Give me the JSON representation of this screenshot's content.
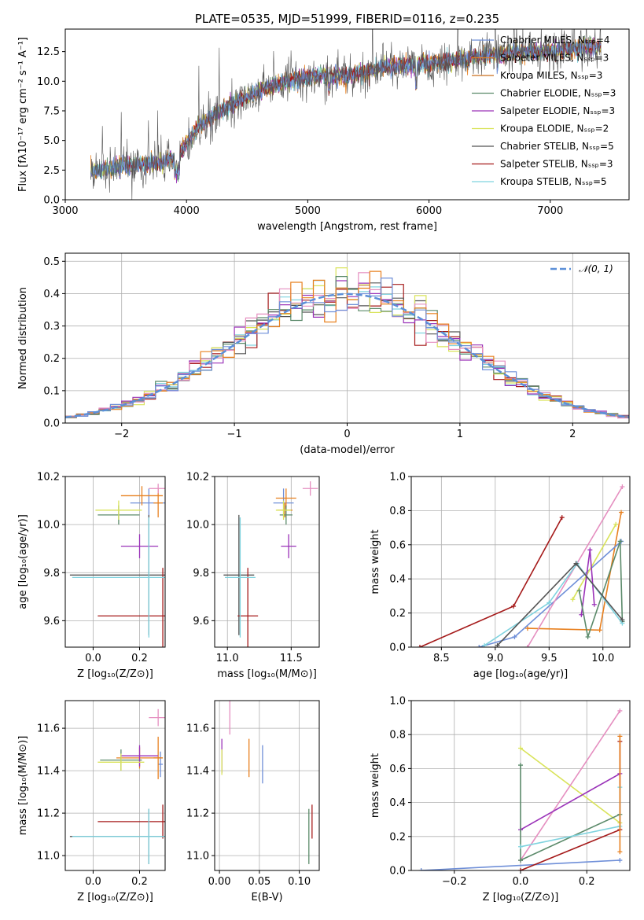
{
  "colors": [
    "#6f8fd8",
    "#e8801f",
    "#c96f1f",
    "#5b8a6a",
    "#9a32b8",
    "#d9e35a",
    "#555555",
    "#a51a1a",
    "#7fd3df"
  ],
  "chart_data": [
    {
      "id": "spectrum",
      "type": "line",
      "title": "PLATE=0535, MJD=51999, FIBERID=0116, z=0.235",
      "xlabel": "wavelength [Angstrom, rest frame]",
      "ylabel": "Flux [fλ10⁻¹⁷ erg cm⁻² s⁻¹ A⁻¹]",
      "xlim": [
        3000,
        7650
      ],
      "ylim": [
        0,
        14.4
      ],
      "xticks": [
        3000,
        4000,
        5000,
        6000,
        7000
      ],
      "yticks": [
        0.0,
        2.5,
        5.0,
        7.5,
        10.0,
        12.5
      ],
      "xtick_labels": [
        "3000",
        "4000",
        "5000",
        "6000",
        "7000"
      ],
      "ytick_labels": [
        "0.0",
        "2.5",
        "5.0",
        "7.5",
        "10.0",
        "12.5"
      ],
      "data_x": [
        3210,
        3400,
        3600,
        3800,
        3950,
        4100,
        4300,
        4500,
        4700,
        4900,
        5100,
        5300,
        5500,
        5700,
        5900,
        6100,
        6300,
        6500,
        6700,
        6900,
        7100,
        7300
      ],
      "data_y": [
        2.4,
        2.7,
        2.9,
        3.1,
        4.0,
        6.2,
        7.6,
        8.7,
        9.6,
        10.2,
        10.5,
        10.4,
        10.9,
        11.3,
        11.4,
        11.6,
        11.9,
        12.2,
        12.4,
        12.5,
        12.6,
        12.9
      ],
      "legend": [
        "Chabrier MILES, N$_{SSP}$=4",
        "Salpeter MILES, N$_{SSP}$=3",
        "Kroupa MILES, N$_{SSP}$=3",
        "Chabrier ELODIE, N$_{SSP}$=3",
        "Salpeter ELODIE, N$_{SSP}$=3",
        "Kroupa ELODIE, N$_{SSP}$=2",
        "Chabrier STELIB, N$_{SSP}$=5",
        "Salpeter STELIB, N$_{SSP}$=3",
        "Kroupa STELIB, N$_{SSP}$=5"
      ],
      "legend_text": [
        "Chabrier MILES, Nₛₛₚ=4",
        "Salpeter MILES, Nₛₛₚ=3",
        "Kroupa MILES, Nₛₛₚ=3",
        "Chabrier ELODIE, Nₛₛₚ=3",
        "Salpeter ELODIE, Nₛₛₚ=3",
        "Kroupa ELODIE, Nₛₛₚ=2",
        "Chabrier STELIB, Nₛₛₚ=5",
        "Salpeter STELIB, Nₛₛₚ=3",
        "Kroupa STELIB, Nₛₛₚ=5"
      ],
      "legend_position": "top-right",
      "grid": false
    },
    {
      "id": "residuals",
      "type": "line",
      "xlabel": "(data-model)/error",
      "ylabel": "Normed distribution",
      "xlim": [
        -2.5,
        2.5
      ],
      "ylim": [
        0,
        0.525
      ],
      "xticks": [
        -2,
        -1,
        0,
        1,
        2
      ],
      "yticks": [
        0.0,
        0.1,
        0.2,
        0.3,
        0.4,
        0.5
      ],
      "xtick_labels": [
        "−2",
        "−1",
        "0",
        "1",
        "2"
      ],
      "ytick_labels": [
        "0.0",
        "0.1",
        "0.2",
        "0.3",
        "0.4",
        "0.5"
      ],
      "legend": [
        "$\\mathcal{N}(0,1)$"
      ],
      "legend_text": [
        "𝒩(0, 1)"
      ],
      "legend_position": "top-right",
      "grid": true
    },
    {
      "id": "age-vs-Z",
      "type": "scatter",
      "xlabel": "Z [log₁₀(Z/Z⊙)]",
      "ylabel": "age  [log₁₀(age/yr)]",
      "xlim": [
        -0.12,
        0.31
      ],
      "ylim": [
        9.49,
        10.2
      ],
      "xticks": [
        0.0,
        0.2
      ],
      "yticks": [
        9.6,
        9.8,
        10.0,
        10.2
      ],
      "xtick_labels": [
        "0.0",
        "0.2"
      ],
      "ytick_labels": [
        "9.6",
        "9.8",
        "10.0",
        "10.2"
      ],
      "grid": true,
      "points": [
        {
          "x": 0.24,
          "y": 10.09,
          "xerr": 0.08,
          "yerr": 0.06
        },
        {
          "x": 0.28,
          "y": 10.09,
          "xerr": 0.02,
          "yerr": 0.06
        },
        {
          "x": 0.21,
          "y": 10.12,
          "xerr": 0.09,
          "yerr": 0.04
        },
        {
          "x": 0.11,
          "y": 10.04,
          "xerr": 0.09,
          "yerr": 0.04
        },
        {
          "x": 0.2,
          "y": 9.91,
          "xerr": 0.08,
          "yerr": 0.05
        },
        {
          "x": 0.11,
          "y": 10.06,
          "xerr": 0.1,
          "yerr": 0.04
        },
        {
          "x": 0.24,
          "y": 9.79,
          "xerr": 0.34,
          "yerr": 0.25
        },
        {
          "x": 0.3,
          "y": 9.62,
          "xerr": 0.28,
          "yerr": 0.2
        },
        {
          "x": 0.24,
          "y": 9.78,
          "xerr": 0.33,
          "yerr": 0.25
        },
        {
          "x": 0.28,
          "y": 10.15,
          "xerr": 0.04,
          "yerr": 0.02
        }
      ]
    },
    {
      "id": "age-vs-mass",
      "type": "scatter",
      "xlabel": "mass [log₁₀(M/M⊙)]",
      "ylabel": "",
      "xlim": [
        10.9,
        11.72
      ],
      "ylim": [
        9.49,
        10.2
      ],
      "xticks": [
        11.0,
        11.5
      ],
      "yticks": [
        9.6,
        9.8,
        10.0,
        10.2
      ],
      "xtick_labels": [
        "11.0",
        "11.5"
      ],
      "ytick_labels": [
        "9.6",
        "9.8",
        "10.0",
        "10.2"
      ],
      "grid": true,
      "points": [
        {
          "x": 11.44,
          "y": 10.09,
          "xerr": 0.08,
          "yerr": 0.06
        },
        {
          "x": 11.46,
          "y": 10.11,
          "xerr": 0.08,
          "yerr": 0.04
        },
        {
          "x": 11.45,
          "y": 10.06,
          "xerr": 0.06,
          "yerr": 0.03
        },
        {
          "x": 11.46,
          "y": 10.04,
          "xerr": 0.05,
          "yerr": 0.04
        },
        {
          "x": 11.48,
          "y": 9.91,
          "xerr": 0.06,
          "yerr": 0.05
        },
        {
          "x": 11.44,
          "y": 10.06,
          "xerr": 0.06,
          "yerr": 0.04
        },
        {
          "x": 11.09,
          "y": 9.79,
          "xerr": 0.12,
          "yerr": 0.25
        },
        {
          "x": 11.16,
          "y": 9.62,
          "xerr": 0.08,
          "yerr": 0.2
        },
        {
          "x": 11.1,
          "y": 9.78,
          "xerr": 0.12,
          "yerr": 0.25
        },
        {
          "x": 11.65,
          "y": 10.15,
          "xerr": 0.06,
          "yerr": 0.03
        }
      ]
    },
    {
      "id": "weight-vs-age",
      "type": "line",
      "xlabel": "age  [log₁₀(age/yr)]",
      "ylabel": "mass weight",
      "xlim": [
        8.22,
        10.25
      ],
      "ylim": [
        0,
        1.0
      ],
      "xticks": [
        8.5,
        9.0,
        9.5,
        10.0
      ],
      "yticks": [
        0.0,
        0.2,
        0.4,
        0.6,
        0.8,
        1.0
      ],
      "xtick_labels": [
        "8.5",
        "9.0",
        "9.5",
        "10.0"
      ],
      "ytick_labels": [
        "0.0",
        "0.2",
        "0.4",
        "0.6",
        "0.8",
        "1.0"
      ],
      "grid": true
    },
    {
      "id": "mass-vs-Z",
      "type": "scatter",
      "xlabel": "Z [log₁₀(Z/Z⊙)]",
      "ylabel": "mass [log₁₀(M/M⊙)]",
      "xlim": [
        -0.12,
        0.31
      ],
      "ylim": [
        10.93,
        11.73
      ],
      "xticks": [
        0.0,
        0.2
      ],
      "yticks": [
        11.0,
        11.2,
        11.4,
        11.6
      ],
      "xtick_labels": [
        "0.0",
        "0.2"
      ],
      "ytick_labels": [
        "11.0",
        "11.2",
        "11.4",
        "11.6"
      ],
      "grid": true,
      "points": [
        {
          "x": 0.29,
          "y": 11.43,
          "xerr": 0.01,
          "yerr": 0.06
        },
        {
          "x": 0.28,
          "y": 11.46,
          "xerr": 0.02,
          "yerr": 0.1
        },
        {
          "x": 0.2,
          "y": 11.46,
          "xerr": 0.1,
          "yerr": 0.05
        },
        {
          "x": 0.12,
          "y": 11.45,
          "xerr": 0.09,
          "yerr": 0.05
        },
        {
          "x": 0.2,
          "y": 11.47,
          "xerr": 0.08,
          "yerr": 0.05
        },
        {
          "x": 0.12,
          "y": 11.44,
          "xerr": 0.1,
          "yerr": 0.04
        },
        {
          "x": 0.24,
          "y": 11.09,
          "xerr": 0.34,
          "yerr": 0.13
        },
        {
          "x": 0.3,
          "y": 11.16,
          "xerr": 0.28,
          "yerr": 0.08
        },
        {
          "x": 0.24,
          "y": 11.09,
          "xerr": 0.33,
          "yerr": 0.13
        },
        {
          "x": 0.28,
          "y": 11.65,
          "xerr": 0.04,
          "yerr": 0.04
        }
      ]
    },
    {
      "id": "mass-vs-ebv",
      "type": "scatter",
      "xlabel": "E(B-V)",
      "ylabel": "",
      "xlim": [
        -0.006,
        0.125
      ],
      "ylim": [
        10.93,
        11.73
      ],
      "xticks": [
        0.0,
        0.05,
        0.1
      ],
      "yticks": [
        11.0,
        11.2,
        11.4,
        11.6
      ],
      "xtick_labels": [
        "0.00",
        "0.05",
        "0.10"
      ],
      "ytick_labels": [
        "11.0",
        "11.2",
        "11.4",
        "11.6"
      ],
      "grid": true,
      "points": [
        {
          "x": 0.054,
          "y": 11.43,
          "xerr": 0,
          "yerr": 0.09
        },
        {
          "x": 0.037,
          "y": 11.46,
          "xerr": 0,
          "yerr": 0.09
        },
        {
          "x": 0.003,
          "y": 11.47,
          "xerr": 0,
          "yerr": 0.08
        },
        {
          "x": 0.003,
          "y": 11.44,
          "xerr": 0,
          "yerr": 0.06
        },
        {
          "x": 0.013,
          "y": 11.65,
          "xerr": 0,
          "yerr": 0.08
        },
        {
          "x": 0.112,
          "y": 11.09,
          "xerr": 0,
          "yerr": 0.13
        },
        {
          "x": 0.116,
          "y": 11.16,
          "xerr": 0,
          "yerr": 0.08
        }
      ]
    },
    {
      "id": "weight-vs-Z",
      "type": "line",
      "xlabel": "Z [log₁₀(Z/Z⊙)]",
      "ylabel": "mass weight",
      "xlim": [
        -0.33,
        0.33
      ],
      "ylim": [
        0,
        1.0
      ],
      "xticks": [
        -0.2,
        0.0,
        0.2
      ],
      "yticks": [
        0.0,
        0.2,
        0.4,
        0.6,
        0.8,
        1.0
      ],
      "xtick_labels": [
        "−0.2",
        "0.0",
        "0.2"
      ],
      "ytick_labels": [
        "0.0",
        "0.2",
        "0.4",
        "0.6",
        "0.8",
        "1.0"
      ],
      "grid": true
    }
  ]
}
